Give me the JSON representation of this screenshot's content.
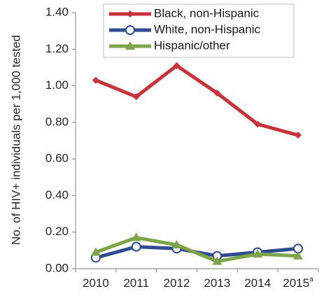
{
  "chart_data": {
    "type": "line",
    "title": "",
    "xlabel": "",
    "ylabel": "No. of HIV+ individuals per 1,000 tested",
    "categories": [
      "2010",
      "2011",
      "2012",
      "2013",
      "2014",
      "2015"
    ],
    "category_footnote": "a",
    "ylim": [
      0,
      1.4
    ],
    "yticks": [
      "0.00",
      "0.20",
      "0.40",
      "0.60",
      "0.80",
      "1.00",
      "1.20",
      "1.40"
    ],
    "ytick_values": [
      0,
      0.2,
      0.4,
      0.6,
      0.8,
      1.0,
      1.2,
      1.4
    ],
    "grid": false,
    "legend_position": "top-right",
    "series": [
      {
        "name": "Black, non-Hispanic",
        "values": [
          1.03,
          0.94,
          1.11,
          0.96,
          0.79,
          0.73
        ],
        "color": "#c8323b",
        "marker": "diamond"
      },
      {
        "name": "White, non-Hispanic",
        "values": [
          0.06,
          0.12,
          0.11,
          0.07,
          0.09,
          0.11
        ],
        "color": "#2e4c8f",
        "marker": "circle"
      },
      {
        "name": "Hispanic/other",
        "values": [
          0.09,
          0.17,
          0.13,
          0.04,
          0.08,
          0.07
        ],
        "color": "#7ea44a",
        "marker": "triangle"
      }
    ]
  }
}
